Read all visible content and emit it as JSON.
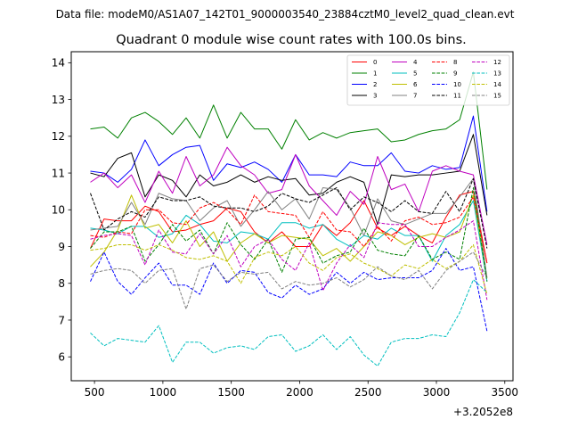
{
  "chart_data": {
    "type": "line",
    "suptitle": "Data file: modeM0/AS1A07_142T01_9000003540_23884cztM0_level2_quad_clean.evt",
    "title": "Quadrant 0 module wise count rates with 100.0s bins.",
    "xlabel": "",
    "ylabel": "",
    "x_offset_label": "+3.2052e8",
    "xlim": [
      330,
      3560
    ],
    "ylim": [
      5.35,
      14.3
    ],
    "x_ticks": [
      500,
      1000,
      1500,
      2000,
      2500,
      3000,
      3500
    ],
    "y_ticks": [
      6,
      7,
      8,
      9,
      10,
      11,
      12,
      13,
      14
    ],
    "legend_location": "upper right",
    "legend_columns": 4,
    "x": [
      470,
      570,
      670,
      770,
      870,
      970,
      1070,
      1170,
      1270,
      1370,
      1470,
      1570,
      1670,
      1770,
      1870,
      1970,
      2070,
      2170,
      2270,
      2370,
      2470,
      2570,
      2670,
      2770,
      2870,
      2970,
      3070,
      3170,
      3270,
      3370
    ],
    "series": [
      {
        "name": "0",
        "color": "#ff0000",
        "dash": "solid",
        "values": [
          8.95,
          9.75,
          9.7,
          9.7,
          10.1,
          9.95,
          9.4,
          9.45,
          9.6,
          9.7,
          10.05,
          9.95,
          9.4,
          9.1,
          9.4,
          9.0,
          9.0,
          9.6,
          9.3,
          9.65,
          10.25,
          9.5,
          9.3,
          9.55,
          9.3,
          9.1,
          9.8,
          10.4,
          10.5,
          8.55
        ]
      },
      {
        "name": "1",
        "color": "#008000",
        "dash": "solid",
        "values": [
          12.2,
          12.25,
          11.95,
          12.5,
          12.65,
          12.4,
          12.05,
          12.5,
          11.95,
          12.85,
          11.95,
          12.65,
          12.2,
          12.2,
          11.65,
          12.45,
          11.9,
          12.1,
          11.95,
          12.1,
          12.15,
          12.2,
          11.85,
          11.9,
          12.05,
          12.15,
          12.2,
          12.45,
          13.75,
          10.55
        ]
      },
      {
        "name": "2",
        "color": "#0000ff",
        "dash": "solid",
        "values": [
          11.05,
          11.0,
          10.75,
          11.1,
          11.9,
          11.2,
          11.5,
          11.7,
          11.75,
          10.8,
          11.25,
          11.15,
          11.3,
          11.1,
          10.75,
          11.5,
          10.95,
          10.95,
          10.9,
          11.3,
          11.2,
          11.2,
          11.55,
          11.05,
          11.0,
          11.2,
          11.1,
          11.15,
          12.55,
          9.95
        ]
      },
      {
        "name": "3",
        "color": "#000000",
        "dash": "solid",
        "values": [
          11.0,
          10.9,
          11.4,
          11.55,
          10.35,
          10.95,
          10.8,
          10.35,
          10.95,
          10.65,
          10.75,
          10.95,
          10.75,
          10.9,
          10.8,
          10.85,
          10.4,
          10.45,
          10.75,
          10.9,
          10.75,
          9.6,
          10.95,
          10.9,
          10.95,
          10.95,
          11.0,
          11.05,
          12.05,
          9.85
        ]
      },
      {
        "name": "4",
        "color": "#bf00bf",
        "dash": "solid",
        "values": [
          10.75,
          11.0,
          10.6,
          10.95,
          10.2,
          11.05,
          10.45,
          11.45,
          10.65,
          10.95,
          11.7,
          11.2,
          10.95,
          10.45,
          10.55,
          11.5,
          10.65,
          10.25,
          9.85,
          10.5,
          10.15,
          11.45,
          10.55,
          10.7,
          9.95,
          11.05,
          11.2,
          11.05,
          10.95,
          9.05
        ]
      },
      {
        "name": "5",
        "color": "#00bfbf",
        "dash": "solid",
        "values": [
          9.5,
          9.45,
          9.35,
          9.55,
          9.55,
          9.25,
          9.35,
          9.85,
          9.6,
          9.15,
          9.1,
          9.4,
          9.35,
          9.2,
          9.65,
          9.65,
          9.5,
          9.6,
          9.2,
          9.0,
          9.3,
          9.2,
          9.5,
          9.3,
          9.3,
          8.6,
          9.3,
          9.6,
          10.25,
          8.05
        ]
      },
      {
        "name": "6",
        "color": "#bfbf00",
        "dash": "solid",
        "values": [
          8.45,
          8.85,
          9.45,
          10.4,
          9.5,
          9.6,
          9.1,
          9.7,
          9.0,
          9.4,
          8.6,
          9.1,
          9.35,
          9.1,
          9.3,
          9.25,
          9.2,
          8.75,
          8.95,
          8.6,
          9.0,
          9.4,
          9.3,
          9.05,
          9.25,
          9.35,
          9.25,
          9.4,
          10.4,
          8.15
        ]
      },
      {
        "name": "7",
        "color": "#808080",
        "dash": "solid",
        "values": [
          9.45,
          9.5,
          9.55,
          10.2,
          9.6,
          10.45,
          10.3,
          10.25,
          9.7,
          10.05,
          10.25,
          9.55,
          10.0,
          10.5,
          10.0,
          10.3,
          9.75,
          10.6,
          10.55,
          10.05,
          9.3,
          10.3,
          9.7,
          9.6,
          9.75,
          9.9,
          9.9,
          10.35,
          10.85,
          8.15
        ]
      },
      {
        "name": "8",
        "color": "#ff0000",
        "dash": "dashed",
        "values": [
          9.3,
          9.25,
          9.4,
          9.35,
          10.0,
          10.0,
          9.65,
          9.6,
          10.05,
          10.2,
          10.0,
          9.6,
          10.4,
          9.95,
          9.9,
          9.85,
          9.25,
          9.95,
          9.45,
          9.4,
          9.0,
          9.55,
          9.15,
          9.7,
          9.8,
          9.6,
          9.65,
          9.8,
          10.35,
          8.55
        ]
      },
      {
        "name": "9",
        "color": "#008000",
        "dash": "dashed",
        "values": [
          8.95,
          9.4,
          9.4,
          9.55,
          8.6,
          9.05,
          9.6,
          9.15,
          9.45,
          8.8,
          9.65,
          9.05,
          8.65,
          9.2,
          8.3,
          9.2,
          9.25,
          8.55,
          8.75,
          8.85,
          9.5,
          8.9,
          8.8,
          8.75,
          9.3,
          8.65,
          8.85,
          8.65,
          10.6,
          8.05
        ]
      },
      {
        "name": "10",
        "color": "#0000ff",
        "dash": "dashed",
        "values": [
          8.05,
          8.85,
          8.05,
          7.7,
          8.15,
          8.55,
          7.95,
          7.95,
          7.7,
          8.55,
          8.0,
          8.35,
          8.3,
          7.75,
          7.6,
          7.95,
          7.7,
          7.85,
          8.3,
          8.0,
          8.3,
          8.1,
          8.15,
          8.15,
          8.15,
          8.35,
          8.95,
          8.35,
          8.45,
          6.7
        ]
      },
      {
        "name": "11",
        "color": "#000000",
        "dash": "dashed",
        "values": [
          10.45,
          9.45,
          9.75,
          9.95,
          9.8,
          10.35,
          10.25,
          10.25,
          10.35,
          10.1,
          10.05,
          10.05,
          9.95,
          10.1,
          10.45,
          10.3,
          10.2,
          10.4,
          10.6,
          10.0,
          10.35,
          10.2,
          9.95,
          10.25,
          9.95,
          9.9,
          10.5,
          9.95,
          10.85,
          8.95
        ]
      },
      {
        "name": "12",
        "color": "#bf00bf",
        "dash": "dashed",
        "values": [
          9.2,
          9.3,
          9.35,
          9.3,
          8.5,
          9.45,
          8.85,
          8.8,
          9.35,
          8.8,
          9.3,
          8.45,
          9.0,
          9.2,
          8.65,
          8.35,
          9.1,
          7.8,
          8.55,
          9.05,
          8.7,
          9.65,
          9.6,
          9.6,
          9.0,
          9.0,
          9.25,
          9.45,
          9.7,
          7.55
        ]
      },
      {
        "name": "13",
        "color": "#00bfbf",
        "dash": "dashed",
        "values": [
          6.65,
          6.3,
          6.5,
          6.45,
          6.4,
          6.85,
          5.85,
          6.4,
          6.4,
          6.1,
          6.25,
          6.3,
          6.2,
          6.55,
          6.6,
          6.15,
          6.3,
          6.6,
          6.2,
          6.55,
          6.05,
          5.75,
          6.4,
          6.5,
          6.5,
          6.6,
          6.55,
          7.2,
          8.1,
          7.75
        ]
      },
      {
        "name": "14",
        "color": "#bfbf00",
        "dash": "dashed",
        "values": [
          8.9,
          8.95,
          9.05,
          9.05,
          8.9,
          9.05,
          8.9,
          8.7,
          8.65,
          8.75,
          8.6,
          8.0,
          8.7,
          8.85,
          8.75,
          9.0,
          8.55,
          8.35,
          8.7,
          8.8,
          8.55,
          8.4,
          8.2,
          8.5,
          8.4,
          8.65,
          8.4,
          8.6,
          9.05,
          7.7
        ]
      },
      {
        "name": "15",
        "color": "#808080",
        "dash": "dashed",
        "values": [
          8.25,
          8.35,
          8.4,
          8.35,
          8.0,
          8.35,
          8.4,
          7.3,
          8.4,
          8.5,
          8.05,
          8.3,
          8.25,
          8.3,
          7.85,
          8.05,
          7.95,
          8.0,
          8.15,
          7.9,
          8.1,
          8.45,
          8.2,
          8.1,
          8.35,
          7.85,
          8.35,
          8.6,
          8.85,
          8.15
        ]
      }
    ]
  }
}
